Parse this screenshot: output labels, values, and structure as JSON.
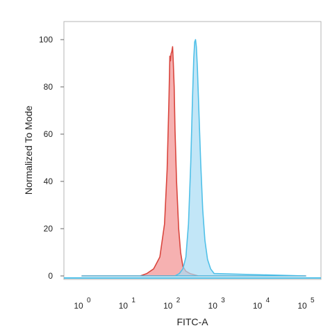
{
  "chart_data": {
    "type": "area",
    "title": "",
    "xlabel": "FITC-A",
    "ylabel": "Normalized To Mode",
    "x_scale": "log",
    "xlim": [
      1,
      100000
    ],
    "ylim": [
      0,
      106
    ],
    "grid": false,
    "legend": "none",
    "x_ticks": [
      {
        "base": "10",
        "exp": "0",
        "value": 1
      },
      {
        "base": "10",
        "exp": "1",
        "value": 10
      },
      {
        "base": "10",
        "exp": "2",
        "value": 100
      },
      {
        "base": "10",
        "exp": "3",
        "value": 1000
      },
      {
        "base": "10",
        "exp": "4",
        "value": 10000
      },
      {
        "base": "10",
        "exp": "5",
        "value": 100000
      }
    ],
    "y_ticks": [
      "0",
      "20",
      "40",
      "60",
      "80",
      "100"
    ],
    "series": [
      {
        "fill": "#f5a3a3",
        "stroke": "#d9453d",
        "x": [
          1,
          20,
          28,
          40,
          55,
          70,
          80,
          88,
          92,
          95,
          98,
          102,
          106,
          110,
          115,
          120,
          130,
          145,
          160,
          180,
          210,
          260,
          400,
          100000
        ],
        "y": [
          0,
          0,
          1,
          3,
          8,
          22,
          45,
          75,
          93,
          91,
          94,
          95,
          97,
          90,
          80,
          62,
          40,
          20,
          10,
          4,
          2,
          1,
          0,
          0
        ]
      },
      {
        "fill": "#a8dcf3",
        "stroke": "#4fc0e8",
        "x": [
          1,
          120,
          150,
          180,
          210,
          240,
          270,
          295,
          315,
          330,
          345,
          360,
          380,
          410,
          450,
          500,
          560,
          640,
          750,
          900,
          100000
        ],
        "y": [
          0,
          0,
          1,
          3,
          8,
          22,
          48,
          75,
          92,
          99,
          100,
          97,
          88,
          70,
          48,
          28,
          15,
          7,
          3,
          1,
          0
        ]
      }
    ]
  }
}
